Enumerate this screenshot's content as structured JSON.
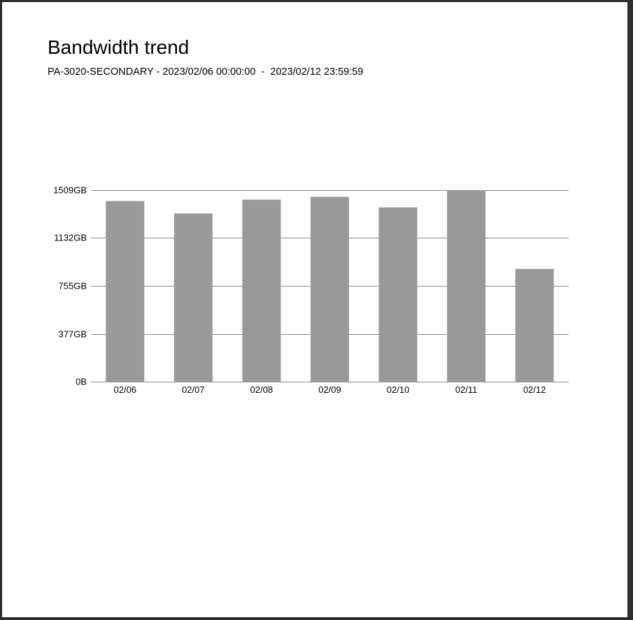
{
  "report": {
    "title": "Bandwidth trend",
    "subtitle": "PA-3020-SECONDARY - 2023/02/06 00:00:00  -  2023/02/12 23:59:59"
  },
  "colors": {
    "bar": "#999999",
    "grid": "#8a8a8a",
    "axis": "#8a8a8a"
  },
  "chart_data": {
    "type": "bar",
    "categories": [
      "02/06",
      "02/07",
      "02/08",
      "02/09",
      "02/10",
      "02/11",
      "02/12"
    ],
    "values": [
      1423,
      1325,
      1434,
      1456,
      1373,
      1509,
      888
    ],
    "unit": "GB",
    "ylim": [
      0,
      1509
    ],
    "yticks": [
      0,
      377,
      755,
      1132,
      1509
    ],
    "yticklabels": [
      "0B",
      "377GB",
      "755GB",
      "1132GB",
      "1509GB"
    ],
    "grid": true,
    "legend": "none"
  }
}
